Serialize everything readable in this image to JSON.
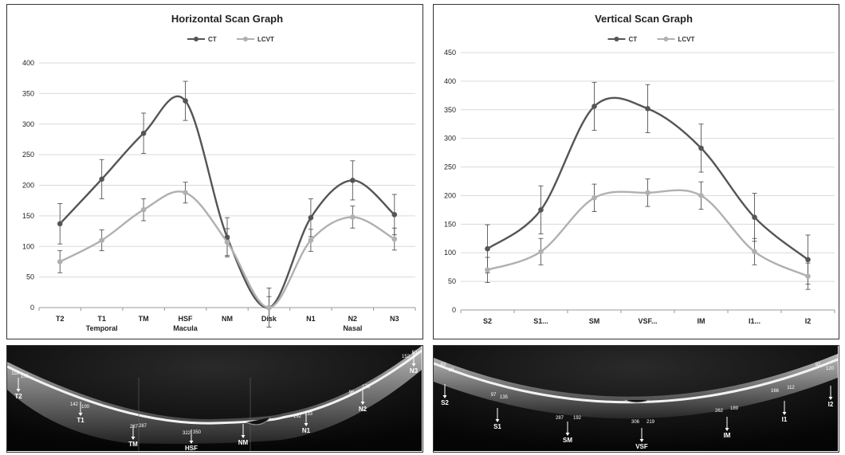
{
  "chart_data": [
    {
      "type": "line",
      "title": "Horizontal Scan Graph",
      "categories": [
        "T2",
        "T1",
        "TM",
        "HSF",
        "NM",
        "Disk",
        "N1",
        "N2",
        "N3"
      ],
      "group_labels": [
        {
          "label": "Temporal",
          "at": "T1"
        },
        {
          "label": "Macula",
          "at": "HSF"
        },
        {
          "label": "Nasal",
          "at": "N2"
        }
      ],
      "ylim": [
        0,
        400
      ],
      "yticks": [
        0,
        50,
        100,
        150,
        200,
        250,
        300,
        350,
        400
      ],
      "grid": true,
      "legend": "top",
      "series": [
        {
          "name": "CT",
          "color": "#555555",
          "values": [
            137,
            210,
            285,
            338,
            115,
            0,
            147,
            208,
            152
          ],
          "errors": [
            33,
            32,
            33,
            32,
            32,
            32,
            31,
            32,
            33
          ]
        },
        {
          "name": "LCVT",
          "color": "#b0b0b0",
          "values": [
            75,
            110,
            160,
            188,
            107,
            0,
            110,
            148,
            112
          ],
          "errors": [
            18,
            17,
            18,
            17,
            22,
            18,
            18,
            18,
            18
          ]
        }
      ]
    },
    {
      "type": "line",
      "title": "Vertical Scan Graph",
      "categories": [
        "S2",
        "S1...",
        "SM",
        "VSF...",
        "IM",
        "I1...",
        "I2"
      ],
      "ylim": [
        0,
        450
      ],
      "yticks": [
        0,
        50,
        100,
        150,
        200,
        250,
        300,
        350,
        400,
        450
      ],
      "grid": true,
      "legend": "top",
      "series": [
        {
          "name": "CT",
          "color": "#555555",
          "values": [
            107,
            175,
            356,
            352,
            283,
            162,
            88
          ],
          "errors": [
            42,
            42,
            42,
            42,
            42,
            42,
            43
          ]
        },
        {
          "name": "LCVT",
          "color": "#b0b0b0",
          "values": [
            70,
            102,
            196,
            205,
            200,
            102,
            59
          ],
          "errors": [
            22,
            23,
            24,
            24,
            24,
            23,
            23
          ]
        }
      ]
    }
  ],
  "oct_left": {
    "markers": [
      "T2",
      "T1",
      "TM",
      "HSF",
      "NM",
      "N1",
      "N2",
      "N3"
    ],
    "values": [
      "118",
      "105",
      "142",
      "100",
      "287",
      "287",
      "322",
      "350",
      "192",
      "133",
      "96",
      "178",
      "152",
      "63"
    ]
  },
  "oct_right": {
    "markers": [
      "S2",
      "S1",
      "SM",
      "VSF",
      "IM",
      "I1",
      "I2"
    ],
    "values": [
      "63",
      "89",
      "97",
      "135",
      "287",
      "192",
      "306",
      "219",
      "262",
      "189",
      "166",
      "112",
      "92",
      "120"
    ]
  }
}
